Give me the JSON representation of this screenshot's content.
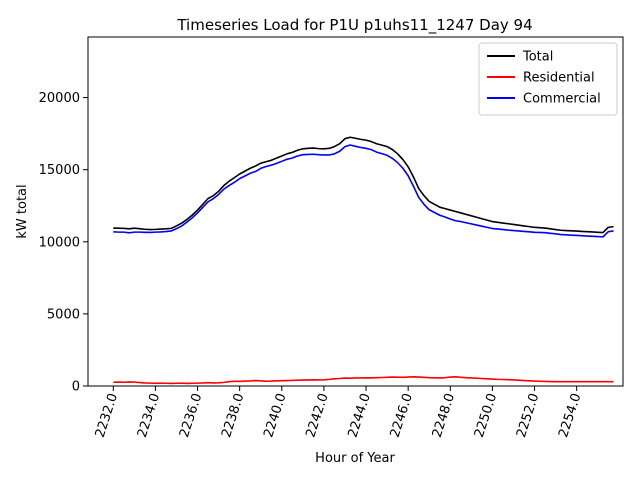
{
  "chart_data": {
    "type": "line",
    "title": "Timeseries Load for P1U p1uhs11_1247  Day 94",
    "xlabel": "Hour of Year",
    "ylabel": "kW total",
    "xlim": [
      2230.8,
      2256.2
    ],
    "ylim": [
      0,
      24200
    ],
    "xticks": [
      2232,
      2234,
      2236,
      2238,
      2240,
      2242,
      2244,
      2246,
      2248,
      2250,
      2252,
      2254
    ],
    "xtick_labels": [
      "2232.0",
      "2234.0",
      "2236.0",
      "2238.0",
      "2240.0",
      "2242.0",
      "2244.0",
      "2246.0",
      "2248.0",
      "2250.0",
      "2252.0",
      "2254.0"
    ],
    "yticks": [
      0,
      5000,
      10000,
      15000,
      20000
    ],
    "ytick_labels": [
      "0",
      "5000",
      "10000",
      "15000",
      "20000"
    ],
    "legend_position": "top-right",
    "x_start": 2232.0,
    "x_step": 0.25,
    "series": [
      {
        "name": "Total",
        "color": "#000000",
        "values": [
          10950,
          10940,
          10930,
          10900,
          10940,
          10910,
          10870,
          10850,
          10860,
          10880,
          10900,
          10930,
          11100,
          11300,
          11550,
          11850,
          12200,
          12600,
          13000,
          13200,
          13500,
          13900,
          14200,
          14450,
          14700,
          14900,
          15100,
          15250,
          15450,
          15550,
          15650,
          15800,
          15950,
          16100,
          16200,
          16350,
          16450,
          16480,
          16500,
          16460,
          16450,
          16480,
          16600,
          16800,
          17150,
          17250,
          17180,
          17100,
          17050,
          16950,
          16800,
          16700,
          16600,
          16400,
          16100,
          15700,
          15200,
          14500,
          13700,
          13200,
          12800,
          12600,
          12400,
          12300,
          12200,
          12100,
          12000,
          11900,
          11800,
          11700,
          11600,
          11500,
          11400,
          11350,
          11300,
          11250,
          11200,
          11150,
          11100,
          11050,
          11000,
          10980,
          10950,
          10900,
          10850,
          10800,
          10780,
          10760,
          10740,
          10720,
          10700,
          10680,
          10660,
          10640,
          11000,
          11050
        ]
      },
      {
        "name": "Residential",
        "color": "#ff0000",
        "values": [
          260,
          270,
          260,
          280,
          270,
          240,
          210,
          200,
          190,
          200,
          190,
          180,
          190,
          200,
          180,
          190,
          200,
          210,
          230,
          210,
          220,
          250,
          300,
          330,
          320,
          340,
          350,
          380,
          360,
          330,
          340,
          360,
          370,
          380,
          390,
          400,
          410,
          420,
          430,
          420,
          430,
          460,
          500,
          520,
          550,
          540,
          560,
          560,
          570,
          560,
          580,
          590,
          600,
          620,
          610,
          600,
          620,
          640,
          620,
          600,
          580,
          570,
          560,
          580,
          620,
          640,
          600,
          580,
          560,
          540,
          520,
          500,
          480,
          460,
          450,
          440,
          420,
          400,
          380,
          360,
          340,
          330,
          320,
          310,
          300,
          300,
          300,
          300,
          300,
          300,
          300,
          300,
          300,
          300,
          300,
          300
        ]
      },
      {
        "name": "Commercial",
        "color": "#0000ff",
        "values": [
          10690,
          10670,
          10670,
          10620,
          10670,
          10670,
          10660,
          10650,
          10670,
          10680,
          10710,
          10750,
          10910,
          11100,
          11370,
          11660,
          12000,
          12390,
          12770,
          12990,
          13280,
          13650,
          13900,
          14120,
          14380,
          14560,
          14750,
          14870,
          15090,
          15220,
          15310,
          15440,
          15580,
          15720,
          15810,
          15950,
          16040,
          16060,
          16070,
          16040,
          16020,
          16020,
          16100,
          16280,
          16600,
          16710,
          16620,
          16540,
          16480,
          16390,
          16220,
          16110,
          16000,
          15780,
          15490,
          15100,
          14580,
          13860,
          13080,
          12600,
          12220,
          12030,
          11840,
          11720,
          11580,
          11460,
          11400,
          11320,
          11240,
          11160,
          11080,
          11000,
          10920,
          10890,
          10850,
          10810,
          10780,
          10750,
          10720,
          10690,
          10660,
          10650,
          10630,
          10590,
          10550,
          10500,
          10480,
          10460,
          10440,
          10420,
          10400,
          10380,
          10360,
          10340,
          10700,
          10750
        ]
      }
    ]
  }
}
